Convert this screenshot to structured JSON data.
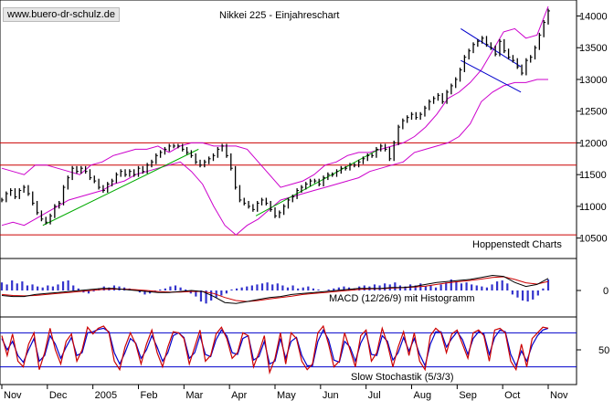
{
  "watermark": "www.buero-dr-schulz.de",
  "chart_data": [
    {
      "type": "line",
      "title": "Nikkei 225 - Einjahreschart",
      "x_tick_labels": [
        "Nov",
        "Dec",
        "2005",
        "Feb",
        "Mar",
        "Apr",
        "May",
        "Jun",
        "Jul",
        "Aug",
        "Sep",
        "Oct",
        "Nov"
      ],
      "y_ticks": [
        10500,
        11000,
        11500,
        12000,
        12500,
        13000,
        13500,
        14000
      ],
      "ylim": [
        10250,
        14180
      ],
      "horizontal_lines": [
        12000,
        11650,
        10550
      ],
      "price": [
        11100,
        11200,
        11250,
        11150,
        11250,
        11300,
        11200,
        11050,
        10900,
        10800,
        10750,
        10850,
        11000,
        11050,
        11300,
        11450,
        11600,
        11550,
        11600,
        11550,
        11450,
        11400,
        11300,
        11250,
        11350,
        11400,
        11500,
        11550,
        11500,
        11550,
        11500,
        11600,
        11550,
        11650,
        11700,
        11800,
        11850,
        11900,
        11950,
        11950,
        11950,
        11900,
        11850,
        11800,
        11700,
        11650,
        11700,
        11750,
        11800,
        11900,
        11950,
        11800,
        11600,
        11300,
        11100,
        11050,
        11000,
        10950,
        11050,
        11100,
        11050,
        10950,
        10850,
        10900,
        11000,
        11100,
        11150,
        11250,
        11300,
        11350,
        11400,
        11400,
        11350,
        11450,
        11500,
        11500,
        11550,
        11600,
        11600,
        11650,
        11650,
        11700,
        11750,
        11800,
        11800,
        11900,
        11950,
        11900,
        11750,
        12000,
        12250,
        12350,
        12400,
        12450,
        12400,
        12450,
        12550,
        12650,
        12700,
        12750,
        12650,
        12800,
        12900,
        13000,
        13150,
        13350,
        13450,
        13550,
        13600,
        13650,
        13550,
        13500,
        13400,
        13600,
        13450,
        13350,
        13300,
        13200,
        13100,
        13300,
        13350,
        13500,
        13700,
        13900,
        14080
      ],
      "upper_band": [
        11600,
        11550,
        11500,
        11650,
        11650,
        11600,
        11550,
        11500,
        11650,
        11700,
        11800,
        11850,
        11900,
        11900,
        11950,
        11850,
        11950,
        12000,
        12000,
        11950,
        11950,
        11950,
        11900,
        11700,
        11500,
        11300,
        11350,
        11400,
        11500,
        11650,
        11700,
        11800,
        11850,
        11850,
        11900,
        11950,
        12000,
        12100,
        12250,
        12450,
        12700,
        12800,
        12950,
        13150,
        13450,
        13750,
        13800,
        13650,
        13700,
        14150
      ],
      "lower_band": [
        10700,
        10750,
        10700,
        10800,
        10900,
        11000,
        11100,
        11150,
        11200,
        11250,
        11350,
        11400,
        11500,
        11550,
        11600,
        11650,
        11700,
        11550,
        11350,
        11000,
        10700,
        10550,
        10700,
        10800,
        10950,
        11100,
        11150,
        11200,
        11250,
        11300,
        11350,
        11400,
        11450,
        11550,
        11600,
        11650,
        11700,
        11850,
        11900,
        11950,
        12000,
        12100,
        12300,
        12650,
        12800,
        12900,
        12950,
        12950,
        13000,
        13000
      ],
      "trendlines": [
        {
          "color": "#00aa00",
          "from": [
            0.075,
            10700
          ],
          "to": [
            0.36,
            11900
          ]
        },
        {
          "color": "#00aa00",
          "from": [
            0.465,
            10850
          ],
          "to": [
            0.69,
            11900
          ]
        },
        {
          "color": "#0000cc",
          "from": [
            0.84,
            13800
          ],
          "to": [
            0.95,
            13200
          ]
        },
        {
          "color": "#0000cc",
          "from": [
            0.84,
            13300
          ],
          "to": [
            0.95,
            12800
          ]
        }
      ]
    },
    {
      "type": "bar",
      "title": "MACD (12/26/9) mit Histogramm",
      "y_ticks": [
        0
      ],
      "ylim": [
        -1,
        1
      ],
      "macd": [
        -0.25,
        -0.3,
        -0.3,
        -0.2,
        -0.15,
        -0.1,
        -0.05,
        0.0,
        0.05,
        0.1,
        0.1,
        0.05,
        0.0,
        -0.05,
        -0.1,
        -0.1,
        -0.05,
        0.0,
        -0.05,
        -0.3,
        -0.6,
        -0.65,
        -0.55,
        -0.45,
        -0.35,
        -0.3,
        -0.2,
        -0.15,
        -0.1,
        -0.05,
        0.0,
        0.05,
        0.1,
        0.1,
        0.1,
        0.15,
        0.15,
        0.2,
        0.3,
        0.4,
        0.45,
        0.5,
        0.55,
        0.65,
        0.75,
        0.7,
        0.4,
        0.2,
        0.3,
        0.6
      ],
      "signal": [
        -0.2,
        -0.25,
        -0.27,
        -0.25,
        -0.2,
        -0.15,
        -0.1,
        -0.05,
        0.0,
        0.05,
        0.07,
        0.07,
        0.04,
        0.0,
        -0.05,
        -0.08,
        -0.08,
        -0.05,
        -0.05,
        -0.15,
        -0.35,
        -0.5,
        -0.55,
        -0.5,
        -0.42,
        -0.35,
        -0.28,
        -0.2,
        -0.15,
        -0.1,
        -0.05,
        0.0,
        0.05,
        0.08,
        0.09,
        0.12,
        0.14,
        0.17,
        0.22,
        0.3,
        0.38,
        0.44,
        0.5,
        0.57,
        0.65,
        0.68,
        0.55,
        0.38,
        0.32,
        0.45
      ],
      "histogram": [
        0.4,
        0.3,
        0.5,
        0.35,
        0.45,
        0.25,
        0.3,
        0.2,
        0.15,
        0.25,
        0.2,
        0.3,
        0.45,
        0.5,
        0.25,
        0.1,
        -0.1,
        -0.15,
        -0.05,
        0.1,
        0.2,
        0.15,
        0.25,
        0.2,
        0.15,
        0.1,
        0.05,
        -0.1,
        -0.2,
        -0.15,
        -0.05,
        0.05,
        0.1,
        0.2,
        0.25,
        0.15,
        0.05,
        -0.15,
        -0.3,
        -0.55,
        -0.65,
        -0.5,
        -0.35,
        -0.25,
        -0.15,
        0.05,
        0.1,
        0.15,
        0.2,
        0.25,
        0.3,
        0.35,
        0.4,
        0.3,
        0.35,
        0.25,
        0.15,
        0.25,
        0.1,
        0.15,
        0.2,
        0.1,
        0.05,
        0.0,
        0.05,
        0.1,
        0.15,
        0.2,
        0.15,
        0.1,
        0.2,
        0.25,
        0.2,
        0.3,
        0.25,
        0.35,
        0.3,
        0.4,
        0.25,
        0.2,
        0.3,
        0.25,
        0.35,
        0.2,
        0.25,
        0.15,
        0.3,
        0.4,
        0.55,
        0.45,
        0.35,
        0.4,
        0.3,
        0.25,
        0.2,
        0.15,
        0.3,
        0.45,
        0.5,
        0.35,
        -0.2,
        -0.35,
        -0.5,
        -0.55,
        -0.45,
        -0.25,
        0.1,
        0.55
      ]
    },
    {
      "type": "line",
      "title": "Slow Stochastik (5/3/3)",
      "y_ticks": [
        50
      ],
      "ylim": [
        0,
        100
      ],
      "horizontal_lines": [
        80,
        20
      ],
      "k": [
        75,
        40,
        78,
        30,
        20,
        60,
        80,
        15,
        45,
        88,
        50,
        25,
        65,
        78,
        30,
        50,
        90,
        78,
        88,
        92,
        80,
        30,
        15,
        55,
        80,
        60,
        25,
        60,
        85,
        45,
        20,
        55,
        82,
        80,
        70,
        25,
        55,
        85,
        30,
        40,
        78,
        90,
        70,
        35,
        45,
        80,
        75,
        20,
        45,
        75,
        10,
        35,
        80,
        25,
        80,
        70,
        30,
        15,
        25,
        80,
        92,
        60,
        20,
        30,
        80,
        50,
        20,
        75,
        85,
        30,
        45,
        88,
        60,
        20,
        55,
        82,
        40,
        80,
        30,
        15,
        75,
        88,
        80,
        45,
        78,
        85,
        60,
        35,
        80,
        85,
        75,
        30,
        85,
        88,
        80,
        30,
        15,
        60,
        20,
        70,
        80,
        90,
        88
      ],
      "d": [
        70,
        50,
        65,
        40,
        28,
        50,
        70,
        30,
        40,
        75,
        60,
        35,
        55,
        72,
        40,
        45,
        80,
        82,
        86,
        88,
        82,
        45,
        25,
        45,
        70,
        62,
        35,
        50,
        75,
        55,
        30,
        45,
        75,
        80,
        72,
        35,
        45,
        75,
        42,
        38,
        68,
        85,
        75,
        45,
        42,
        70,
        75,
        32,
        38,
        65,
        25,
        30,
        70,
        35,
        65,
        72,
        40,
        22,
        22,
        65,
        85,
        68,
        32,
        28,
        65,
        55,
        30,
        62,
        80,
        42,
        40,
        75,
        65,
        32,
        45,
        72,
        48,
        70,
        42,
        22,
        60,
        82,
        82,
        55,
        70,
        82,
        68,
        42,
        70,
        82,
        78,
        42,
        72,
        85,
        82,
        42,
        22,
        48,
        30,
        58,
        75,
        85,
        88
      ]
    }
  ],
  "labels": {
    "hoppenstedt": "Hoppenstedt Charts",
    "macd_label": "MACD (12/26/9) mit Histogramm",
    "stoch_label": "Slow Stochastik (5/3/3)"
  },
  "colors": {
    "price": "#000000",
    "bands": "#cc00cc",
    "support_resistance": "#cc0000",
    "trend_green": "#00aa00",
    "trend_blue": "#0000cc",
    "histogram": "#3333cc",
    "macd_line": "#000000",
    "signal_line": "#cc0000",
    "stoch_k": "#cc0000",
    "stoch_d": "#0000cc"
  }
}
